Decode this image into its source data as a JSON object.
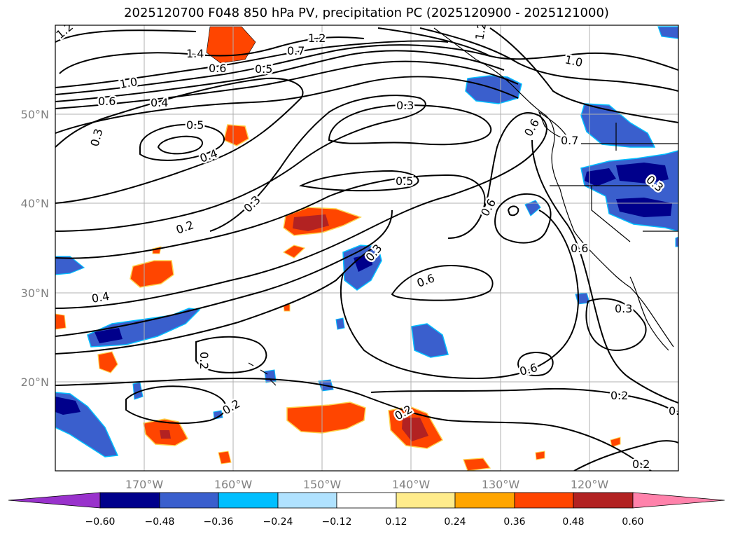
{
  "title": "2025120700 F048 850 hPa PV, precipitation PC (2025120900 - 2025121000)",
  "map": {
    "projection": "cylindrical",
    "lon_range_deg_east": [
      -180,
      -110
    ],
    "lat_range_deg_north": [
      10,
      60
    ],
    "gridlines": true,
    "coastlines": true,
    "longitude_ticks": [
      "170°W",
      "160°W",
      "150°W",
      "140°W",
      "130°W",
      "120°W"
    ],
    "latitude_ticks": [
      "20°N",
      "30°N",
      "40°N",
      "50°N"
    ]
  },
  "contour_labels": [
    "1.2",
    "1.4",
    "1.2",
    "0.7",
    "0.6",
    "0.5",
    "1.2",
    "1.0",
    "1.0",
    "0.6",
    "0.4",
    "0.3",
    "0.5",
    "0.3",
    "0.4",
    "0.5",
    "0.7",
    "0.6",
    "0.3",
    "0.6",
    "0.2",
    "0.3",
    "0.6",
    "0.4",
    "0.6",
    "0.3",
    "0.3",
    "0.6",
    "0.2",
    "0.2",
    "0.2",
    "0.2",
    "0.3",
    "0.2"
  ],
  "colorbar": {
    "extend": "both",
    "ticks": [
      "−0.60",
      "−0.48",
      "−0.36",
      "−0.24",
      "−0.12",
      "0.12",
      "0.24",
      "0.36",
      "0.48",
      "0.60"
    ],
    "colors": [
      "#9932cc",
      "#00008b",
      "#3a5fcd",
      "#00bfff",
      "#b0e2ff",
      "#ffffff",
      "#ffec8b",
      "#ffa500",
      "#ff4500",
      "#b22222",
      "#ff82ab"
    ]
  },
  "colors": {
    "frame": "#000000",
    "grid": "#b0b0b0",
    "tick_text": "#808080"
  }
}
